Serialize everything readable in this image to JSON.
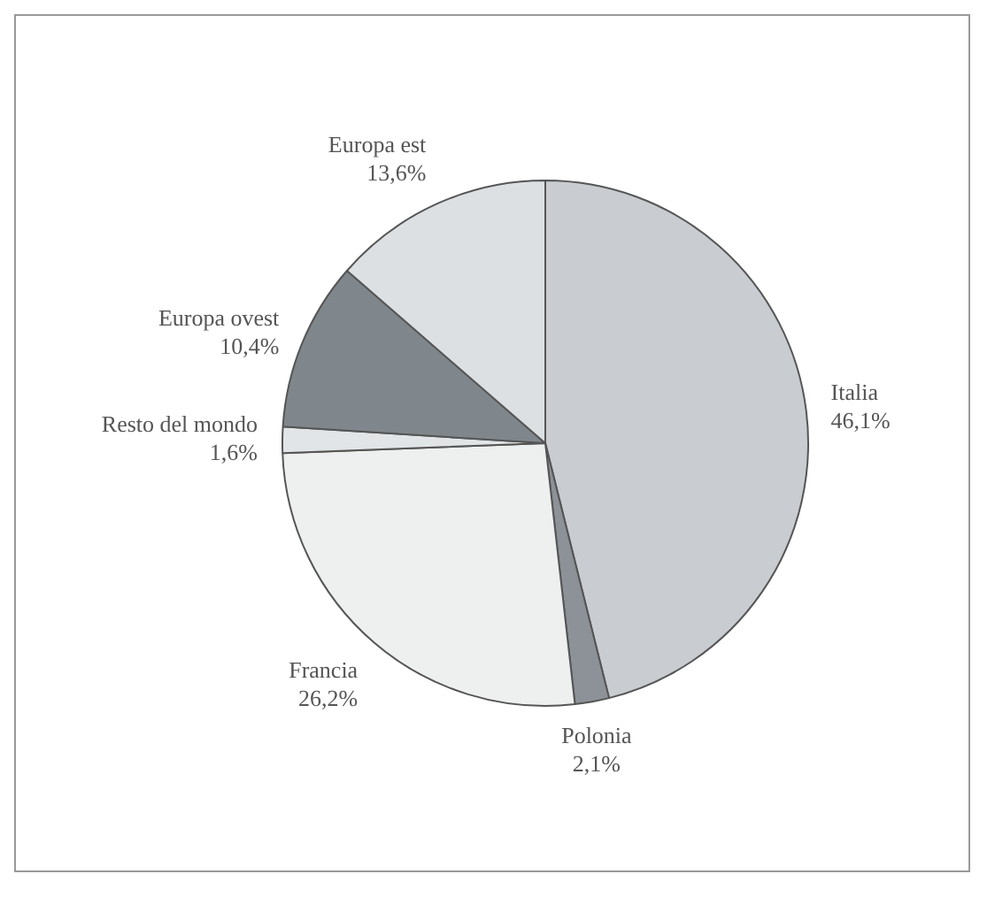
{
  "chart_data": {
    "type": "pie",
    "categories": [
      "Italia",
      "Polonia",
      "Francia",
      "Resto del mondo",
      "Europa ovest",
      "Europa est"
    ],
    "values": [
      46.1,
      2.1,
      26.2,
      1.6,
      10.4,
      13.6
    ],
    "value_labels": [
      "46,1%",
      "2,1%",
      "26,2%",
      "1,6%",
      "10,4%",
      "13,6%"
    ],
    "colors": [
      "#c9ccd0",
      "#8c9297",
      "#eef0f0",
      "#e2e5e7",
      "#80878c",
      "#dde0e3"
    ],
    "legend": false
  }
}
